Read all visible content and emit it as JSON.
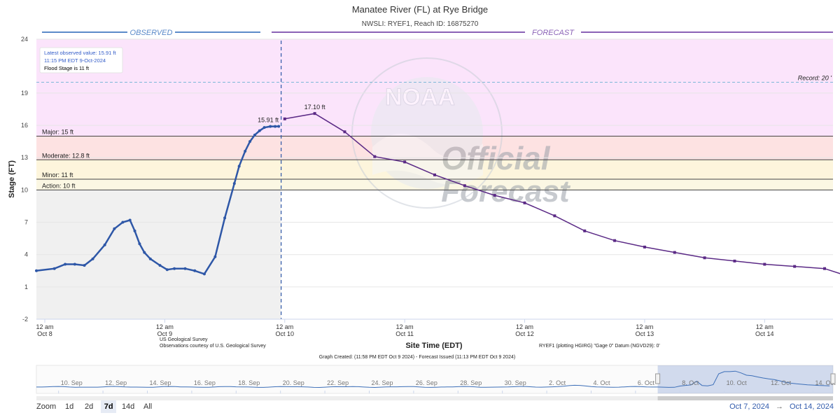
{
  "title": "Manatee River (FL) at Rye Bridge",
  "subtitle": "NWSLI: RYEF1, Reach ID: 16875270",
  "observed_label": "OBSERVED",
  "forecast_label": "FORECAST",
  "info_box": {
    "latest": "Latest observed value: 15.91 ft",
    "time": "11:15 PM EDT 9-Oct-2024",
    "flood": "Flood Stage is 11 ft"
  },
  "watermark": {
    "line1": "Official",
    "line2": "Forecast"
  },
  "credits": {
    "usgs1": "US Geological Survey",
    "usgs2": "Observations courtesy of U.S. Geological Survey",
    "datum": "RYEF1 (plotting HGIRG) \"Gage 0\" Datum (NGVD29): 0'",
    "created": "Graph Created: (11:58 PM EDT Oct 9 2024) - Forecast Issued (11:13 PM EDT Oct 9 2024)"
  },
  "zoom": {
    "label": "Zoom",
    "buttons": [
      "1d",
      "2d",
      "7d",
      "14d",
      "All"
    ],
    "active": "7d"
  },
  "range": {
    "from": "Oct 7, 2024",
    "sep": "→",
    "to": "Oct 14, 2024"
  },
  "navigator": {
    "labels": [
      "10. Sep",
      "12. Sep",
      "14. Sep",
      "16. Sep",
      "18. Sep",
      "20. Sep",
      "22. Sep",
      "24. Sep",
      "26. Sep",
      "28. Sep",
      "30. Sep",
      "2. Oct",
      "4. Oct",
      "6. Oct",
      "8. Oct",
      "10. Oct",
      "12. Oct",
      "14. Oct"
    ],
    "start_day": -29,
    "end_day": 6.9,
    "window": [
      -1,
      6.9
    ]
  },
  "chart_data": {
    "type": "line",
    "xlabel": "Site Time (EDT)",
    "ylabel": "Stage (FT)",
    "x_unit": "days since Oct 8, 2024 12 am (EDT)",
    "xlim": [
      -0.07,
      6.57
    ],
    "ylim": [
      -2,
      24
    ],
    "yticks": [
      -2,
      1,
      4,
      7,
      10,
      13,
      16,
      19,
      24
    ],
    "xticks": [
      {
        "x": 0,
        "l1": "12 am",
        "l2": "Oct 8"
      },
      {
        "x": 1,
        "l1": "12 am",
        "l2": "Oct 9"
      },
      {
        "x": 2,
        "l1": "12 am",
        "l2": "Oct 10"
      },
      {
        "x": 3,
        "l1": "12 am",
        "l2": "Oct 11"
      },
      {
        "x": 4,
        "l1": "12 am",
        "l2": "Oct 12"
      },
      {
        "x": 5,
        "l1": "12 am",
        "l2": "Oct 13"
      },
      {
        "x": 6,
        "l1": "12 am",
        "l2": "Oct 14"
      }
    ],
    "now_x": 1.97,
    "zones": [
      {
        "name": "record",
        "from": 15,
        "to": 24,
        "color": "#fbe4fb"
      },
      {
        "name": "major",
        "from": 12.8,
        "to": 15,
        "color": "#fde2e2"
      },
      {
        "name": "moderate",
        "from": 11,
        "to": 12.8,
        "color": "#fdf5dc"
      },
      {
        "name": "minor",
        "from": 10,
        "to": 11,
        "color": "#fbf7e3"
      }
    ],
    "thresholds": [
      {
        "label": "Major: 15 ft",
        "value": 15
      },
      {
        "label": "Moderate: 12.8 ft",
        "value": 12.8
      },
      {
        "label": "Minor: 11 ft",
        "value": 11
      },
      {
        "label": "Action: 10 ft",
        "value": 10
      }
    ],
    "record": {
      "label": "Record: 20 '",
      "value": 20
    },
    "observed": {
      "name": "Observed",
      "color": "#2e57a7",
      "x": [
        -0.07,
        0.08,
        0.17,
        0.25,
        0.33,
        0.4,
        0.5,
        0.58,
        0.65,
        0.71,
        0.75,
        0.79,
        0.83,
        0.88,
        0.96,
        1.02,
        1.08,
        1.17,
        1.25,
        1.33,
        1.42,
        1.5,
        1.58,
        1.62,
        1.67,
        1.71,
        1.75,
        1.79,
        1.83,
        1.88,
        1.92,
        1.95
      ],
      "values": [
        2.5,
        2.7,
        3.1,
        3.1,
        3.0,
        3.6,
        4.9,
        6.4,
        7.0,
        7.2,
        6.2,
        5.0,
        4.2,
        3.6,
        3.0,
        2.6,
        2.7,
        2.7,
        2.5,
        2.2,
        3.8,
        7.4,
        10.6,
        12.2,
        13.6,
        14.5,
        15.1,
        15.5,
        15.8,
        15.9,
        15.9,
        15.91
      ],
      "last_label": "15.91 ft"
    },
    "forecast": {
      "name": "Forecast",
      "color": "#5b2a86",
      "x": [
        2.0,
        2.25,
        2.5,
        2.75,
        3.0,
        3.25,
        3.5,
        3.75,
        4.0,
        4.25,
        4.5,
        4.75,
        5.0,
        5.25,
        5.5,
        5.75,
        6.0,
        6.25,
        6.5,
        6.75
      ],
      "values": [
        16.6,
        17.1,
        15.4,
        13.1,
        12.6,
        11.4,
        10.4,
        9.5,
        8.8,
        7.6,
        6.2,
        5.3,
        4.7,
        4.2,
        3.7,
        3.4,
        3.1,
        2.9,
        2.7,
        1.8
      ],
      "peak_label": "17.10 ft",
      "peak_index": 1
    }
  }
}
